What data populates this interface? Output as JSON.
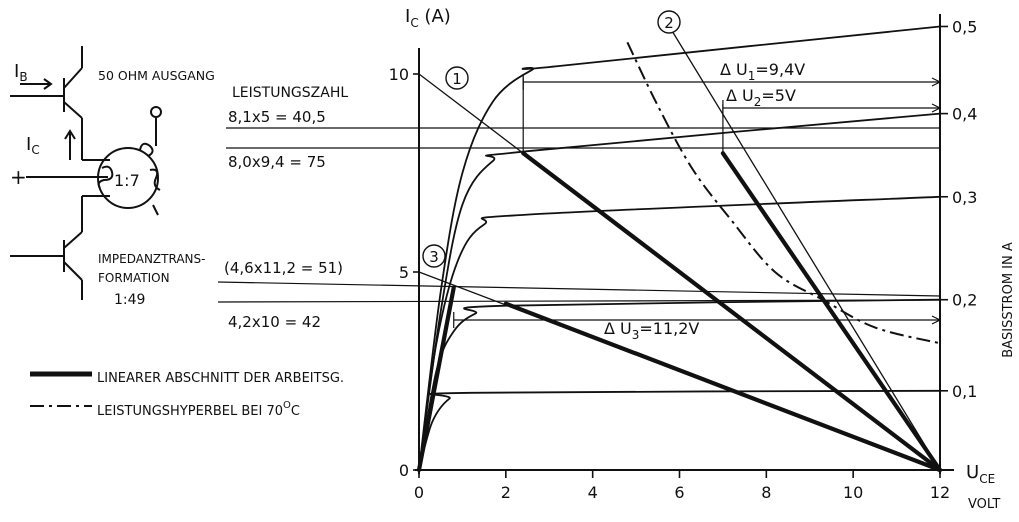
{
  "chart_data": {
    "type": "line",
    "x_axis": {
      "label": "U",
      "label_sub": "CE",
      "unit": "VOLT",
      "range": [
        0,
        12
      ],
      "ticks": [
        "0",
        "2",
        "4",
        "6",
        "8",
        "10",
        "12"
      ]
    },
    "y_axis_left": {
      "label": "I",
      "label_sub": "C",
      "unit": "(A)",
      "range": [
        0,
        10
      ],
      "ticks": [
        "0",
        "5",
        "10"
      ]
    },
    "y_axis_right": {
      "label": "BASISSTROM IN A",
      "ticks": [
        "0,1",
        "0,2",
        "0,3",
        "0,4",
        "0,5"
      ]
    },
    "characteristic_curves": [
      {
        "name": "0,1",
        "points": [
          [
            0,
            0
          ],
          [
            0.3,
            1.2
          ],
          [
            0.7,
            1.8
          ],
          [
            1.2,
            1.95
          ],
          [
            12,
            2.0
          ]
        ]
      },
      {
        "name": "0,2",
        "points": [
          [
            0,
            0
          ],
          [
            0.4,
            2.5
          ],
          [
            0.8,
            3.5
          ],
          [
            1.3,
            3.95
          ],
          [
            2,
            4.15
          ],
          [
            12,
            4.3
          ]
        ]
      },
      {
        "name": "0,3",
        "points": [
          [
            0,
            0
          ],
          [
            0.4,
            3.2
          ],
          [
            0.9,
            5.3
          ],
          [
            1.5,
            6.2
          ],
          [
            2.5,
            6.45
          ],
          [
            12,
            6.9
          ]
        ]
      },
      {
        "name": "0,4",
        "points": [
          [
            0,
            0
          ],
          [
            0.5,
            4.0
          ],
          [
            1.0,
            6.7
          ],
          [
            1.7,
            7.8
          ],
          [
            2.5,
            8.05
          ],
          [
            12,
            9.0
          ]
        ]
      },
      {
        "name": "0,5",
        "points": [
          [
            0,
            0
          ],
          [
            0.5,
            4.5
          ],
          [
            1.0,
            7.5
          ],
          [
            1.7,
            9.3
          ],
          [
            2.6,
            10.1
          ],
          [
            3.2,
            10.2
          ],
          [
            12,
            11.2
          ]
        ]
      }
    ],
    "load_lines": [
      {
        "label": "1",
        "points": [
          [
            0,
            10.0
          ],
          [
            12,
            0
          ]
        ]
      },
      {
        "label": "2",
        "points": [
          [
            5.6,
            11.5
          ],
          [
            12,
            0
          ]
        ]
      },
      {
        "label": "3",
        "points": [
          [
            0,
            5.0
          ],
          [
            12,
            0
          ]
        ]
      }
    ],
    "bold_segments": [
      {
        "points": [
          [
            2.4,
            8.0
          ],
          [
            12,
            0
          ]
        ]
      },
      {
        "points": [
          [
            7.0,
            8.0
          ],
          [
            12,
            0
          ]
        ]
      },
      {
        "points": [
          [
            2.0,
            4.2
          ],
          [
            12,
            0
          ]
        ]
      },
      {
        "points": [
          [
            0,
            0
          ],
          [
            0.8,
            4.6
          ]
        ]
      }
    ],
    "power_hyperbola": {
      "label": "LEISTUNGSHYPERBEL BEI 70°C",
      "points": [
        [
          4.8,
          10.8
        ],
        [
          5.5,
          9.2
        ],
        [
          6.3,
          7.6
        ],
        [
          7.2,
          6.3
        ],
        [
          8.2,
          5.0
        ],
        [
          9.3,
          4.3
        ],
        [
          10.5,
          3.6
        ],
        [
          12,
          3.2
        ]
      ]
    },
    "delta_annotations": [
      {
        "text_delta": "Δ",
        "text_u": "U",
        "sub": "1",
        "value": "=9,4V"
      },
      {
        "text_delta": "Δ",
        "text_u": "U",
        "sub": "2",
        "value": "=5V"
      },
      {
        "text_delta": "Δ",
        "text_u": "U",
        "sub": "3",
        "value": "=11,2V"
      }
    ]
  },
  "schematic": {
    "ib_label": "I",
    "ib_sub": "B",
    "ic_label": "I",
    "ic_sub": "C",
    "plus": "+",
    "output_label": "50 OHM AUSGANG",
    "ratio_label": "1:7",
    "impedance_line1": "IMPEDANZTRANS-",
    "impedance_line2": "FORMATION",
    "impedance_ratio": "1:49"
  },
  "annotations": {
    "leistungszahl": "LEISTUNGSZAHL",
    "eq1": "8,1x5 = 40,5",
    "eq2": "8,0x9,4 = 75",
    "eq3": "(4,6x11,2 = 51)",
    "eq4": "4,2x10 = 42"
  },
  "legend": {
    "linear": "LINEARER ABSCHNITT DER ARBEITSG.",
    "hyperbola_prefix": "LEISTUNGSHYPERBEL BEI 70",
    "hyperbola_sup": "O",
    "hyperbola_suffix": "C"
  }
}
